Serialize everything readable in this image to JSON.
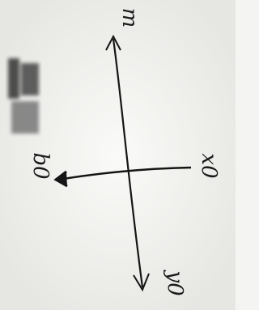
{
  "labels": {
    "top": "m",
    "left": "b0",
    "right": "x0",
    "bottom": "y0"
  }
}
